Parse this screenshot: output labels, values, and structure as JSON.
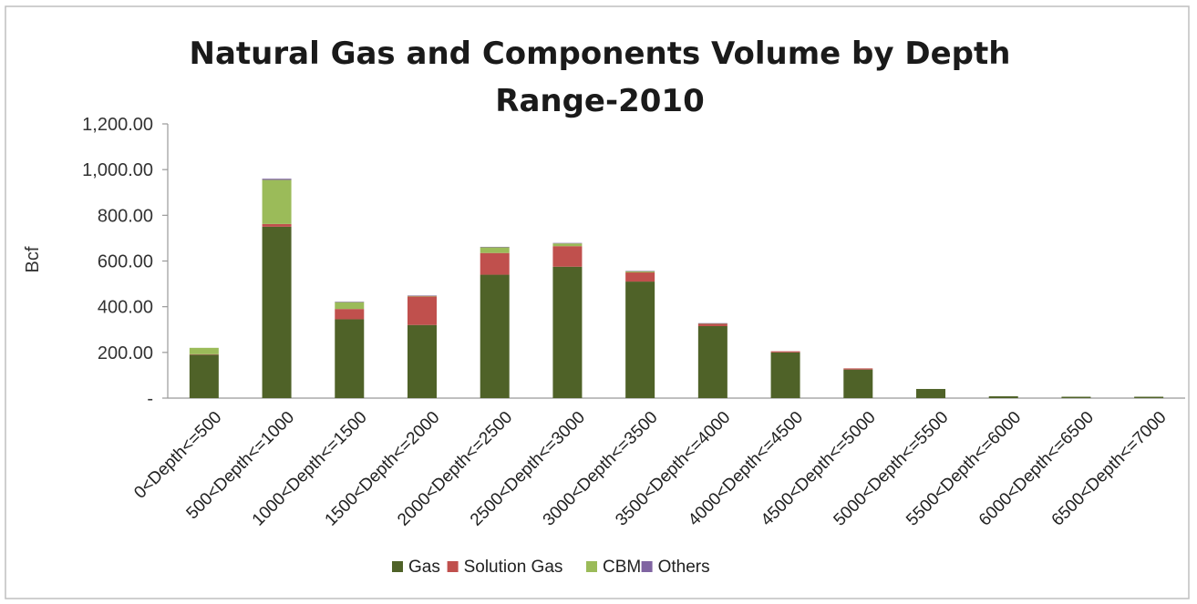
{
  "chart_data": {
    "type": "bar",
    "stacked": true,
    "title": [
      "Natural Gas and Components Volume by Depth",
      "Range-2010"
    ],
    "ylabel": "Bcf",
    "xlabel": "",
    "ylim": [
      0,
      1200
    ],
    "yticks": [
      {
        "value": 0,
        "label": "-"
      },
      {
        "value": 200,
        "label": "200.00"
      },
      {
        "value": 400,
        "label": "400.00"
      },
      {
        "value": 600,
        "label": "600.00"
      },
      {
        "value": 800,
        "label": "800.00"
      },
      {
        "value": 1000,
        "label": "1,000.00"
      },
      {
        "value": 1200,
        "label": "1,200.00"
      }
    ],
    "grid": false,
    "legend_position": "bottom",
    "categories": [
      "0<Depth<=500",
      "500<Depth<=1000",
      "1000<Depth<=1500",
      "1500<Depth<=2000",
      "2000<Depth<=2500",
      "2500<Depth<=3000",
      "3000<Depth<=3500",
      "3500<Depth<=4000",
      "4000<Depth<=4500",
      "4500<Depth<=5000",
      "5000<Depth<=5500",
      "5500<Depth<=6000",
      "6000<Depth<=6500",
      "6500<Depth<=7000"
    ],
    "series": [
      {
        "name": "Gas",
        "color": "#4f6228",
        "values": [
          190,
          750,
          345,
          320,
          540,
          575,
          510,
          315,
          200,
          125,
          40,
          8,
          6,
          6
        ]
      },
      {
        "name": "Solution Gas",
        "color": "#c0504d",
        "values": [
          2,
          12,
          45,
          125,
          95,
          90,
          40,
          10,
          5,
          5,
          0,
          0,
          0,
          0
        ]
      },
      {
        "name": "CBM",
        "color": "#9bbb59",
        "values": [
          28,
          193,
          30,
          3,
          25,
          12,
          5,
          2,
          0,
          0,
          0,
          0,
          0,
          0
        ]
      },
      {
        "name": "Others",
        "color": "#8064a2",
        "values": [
          0,
          5,
          2,
          1,
          2,
          2,
          2,
          1,
          0,
          0,
          0,
          0,
          0,
          0
        ]
      }
    ]
  }
}
